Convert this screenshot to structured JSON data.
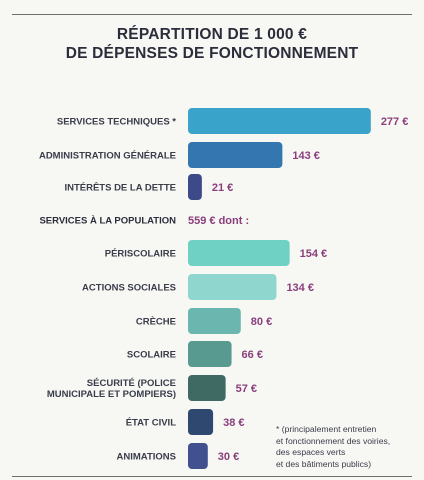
{
  "title": [
    "RÉPARTITION DE 1 000 €",
    "DE DÉPENSES DE FONCTIONNEMENT"
  ],
  "chart_data": {
    "type": "bar",
    "orientation": "horizontal",
    "title": "RÉPARTITION DE 1 000 € DE DÉPENSES DE FONCTIONNEMENT",
    "rows": [
      {
        "label": "SERVICES TECHNIQUES *",
        "value": 277,
        "value_label": "277 €",
        "color": "#3aa3c9"
      },
      {
        "label": "ADMINISTRATION GÉNÉRALE",
        "value": 143,
        "value_label": "143 €",
        "color": "#3476b0"
      },
      {
        "label": "INTÉRÊTS DE LA DETTE",
        "value": 21,
        "value_label": "21 €",
        "color": "#3d4a8a"
      },
      {
        "label": "SERVICES À LA POPULATION",
        "value": 559,
        "value_label": "559 € dont :",
        "group_header": true
      },
      {
        "label": "PÉRISCOLAIRE",
        "value": 154,
        "value_label": "154 €",
        "color": "#6fd0c4"
      },
      {
        "label": "ACTIONS SOCIALES",
        "value": 134,
        "value_label": "134 €",
        "color": "#8fd6cf"
      },
      {
        "label": "CRÈCHE",
        "value": 80,
        "value_label": "80 €",
        "color": "#6bb7b0"
      },
      {
        "label": "SCOLAIRE",
        "value": 66,
        "value_label": "66 €",
        "color": "#599a90"
      },
      {
        "label": "SÉCURITÉ (POLICE\nMUNICIPALE ET POMPIERS)",
        "value": 57,
        "value_label": "57 €",
        "color": "#3f6a63"
      },
      {
        "label": "ÉTAT CIVIL",
        "value": 38,
        "value_label": "38 €",
        "color": "#2f4870"
      },
      {
        "label": "ANIMATIONS",
        "value": 30,
        "value_label": "30 €",
        "color": "#41508e"
      }
    ]
  },
  "footnote": [
    "* (principalement entretien",
    "et fonctionnement des voiries,",
    "des espaces verts",
    "et des bâtiments publics)"
  ]
}
